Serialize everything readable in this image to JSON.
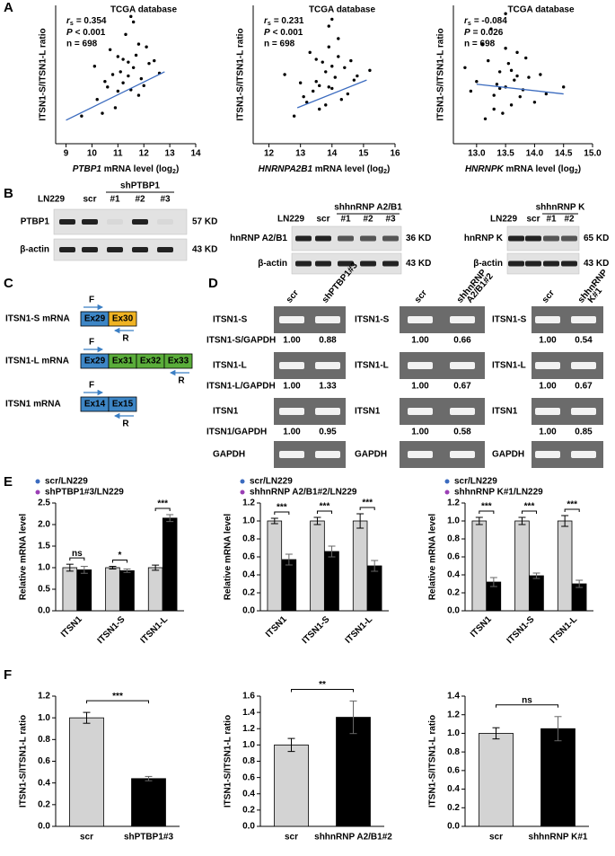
{
  "panels": [
    "A",
    "B",
    "C",
    "D",
    "E",
    "F"
  ],
  "chart_data": [
    {
      "type": "scatter",
      "title": "TCGA database",
      "stats": {
        "rs_symbol": "r",
        "rs_sub": "s",
        "rs": "= 0.354",
        "p_symbol": "P",
        "p": "< 0.001",
        "n": "n = 698"
      },
      "ylabel": "ITSN1-S/ITSN1-L ratio",
      "xlabel": {
        "gene": "PTBP1",
        "text": " mRNA level (log",
        "sub": "2",
        "end": ")"
      },
      "xlim": [
        8.6,
        14
      ],
      "xticks": [
        9,
        10,
        11,
        12,
        13,
        14
      ],
      "ylim": [
        0,
        10
      ],
      "color": "#000000",
      "x": [
        10.2,
        10.5,
        10.8,
        11.0,
        11.2,
        11.4,
        11.6,
        11.8,
        12.0,
        12.2,
        10.9,
        11.3,
        11.7,
        11.1,
        11.5,
        10.7,
        12.4,
        11.9,
        10.4,
        11.6,
        11.2,
        10.1,
        12.6,
        9.6,
        11.0,
        11.8,
        11.4,
        10.6,
        12.1,
        11.5
      ],
      "y": [
        3.2,
        4.5,
        5.0,
        3.8,
        6.1,
        4.9,
        5.5,
        7.2,
        4.2,
        5.8,
        2.6,
        7.9,
        6.4,
        5.2,
        3.9,
        6.8,
        6.0,
        4.7,
        2.2,
        8.8,
        4.4,
        5.6,
        5.1,
        2.0,
        6.3,
        3.5,
        5.9,
        4.1,
        7.0,
        9.2
      ],
      "trend": {
        "x": [
          9.0,
          12.8
        ],
        "y": [
          1.7,
          5.2
        ],
        "color": "#3b6bbf"
      }
    },
    {
      "type": "scatter",
      "title": "TCGA database",
      "stats": {
        "rs_symbol": "r",
        "rs_sub": "s",
        "rs": "= 0.231",
        "p_symbol": "P",
        "p": "< 0.001",
        "n": "n = 698"
      },
      "ylabel": "ITSN1-S/ITSN1-L ratio",
      "xlabel": {
        "gene": "HNRNPA2B1",
        "text": " mRNA level (log",
        "sub": "2",
        "end": ")"
      },
      "xlim": [
        11.5,
        16
      ],
      "xticks": [
        12,
        13,
        14,
        15,
        16
      ],
      "ylim": [
        0,
        10
      ],
      "color": "#000000",
      "x": [
        13.2,
        13.5,
        13.8,
        14.0,
        14.2,
        13.6,
        13.9,
        14.4,
        13.4,
        14.1,
        13.0,
        14.6,
        13.7,
        14.3,
        12.8,
        13.9,
        14.8,
        13.3,
        14.0,
        13.6,
        14.5,
        12.5,
        15.2,
        13.8,
        14.2,
        13.1,
        14.7,
        13.5,
        14.0,
        13.9
      ],
      "y": [
        3.0,
        4.5,
        5.2,
        4.0,
        6.3,
        2.5,
        7.0,
        5.5,
        3.8,
        4.8,
        4.4,
        6.0,
        5.9,
        3.2,
        2.0,
        8.5,
        4.9,
        6.6,
        5.6,
        4.2,
        3.6,
        5.0,
        5.3,
        2.8,
        7.6,
        3.4,
        4.6,
        6.1,
        9.0,
        4.1
      ],
      "trend": {
        "x": [
          12.9,
          15.1
        ],
        "y": [
          2.6,
          4.6
        ],
        "color": "#3b6bbf"
      }
    },
    {
      "type": "scatter",
      "title": "TCGA database",
      "stats": {
        "rs_symbol": "r",
        "rs_sub": "s",
        "rs": "= -0.084",
        "p_symbol": "P",
        "p": "= 0.026",
        "n": "n = 698"
      },
      "ylabel": "ITSN1-S/ITSN1-L ratio",
      "xlabel": {
        "gene": "HNRNPK",
        "text": " mRNA level (log",
        "sub": "2",
        "end": ")"
      },
      "xlim": [
        12.6,
        15.0
      ],
      "xticks": [
        {
          "value": 13,
          "label": "13.0"
        },
        13.5,
        {
          "value": 14,
          "label": "14.0"
        },
        14.5,
        {
          "value": 15,
          "label": "15.0"
        }
      ],
      "ylim": [
        0,
        10
      ],
      "color": "#000000",
      "x": [
        13.0,
        13.2,
        13.3,
        13.4,
        13.5,
        13.6,
        13.7,
        13.8,
        13.9,
        14.0,
        12.8,
        13.1,
        13.35,
        13.55,
        13.45,
        13.65,
        13.25,
        13.75,
        14.1,
        12.9,
        13.5,
        13.3,
        13.6,
        13.4,
        14.2,
        13.85,
        13.15,
        13.7,
        14.5,
        13.5
      ],
      "y": [
        4.5,
        6.0,
        3.5,
        5.2,
        4.1,
        2.8,
        6.6,
        3.9,
        4.8,
        3.0,
        5.5,
        7.2,
        4.3,
        5.8,
        2.2,
        4.6,
        8.3,
        3.4,
        5.0,
        3.8,
        6.9,
        2.5,
        5.3,
        4.0,
        3.6,
        6.2,
        1.8,
        4.9,
        4.1,
        9.4
      ],
      "trend": {
        "x": [
          13.0,
          14.5
        ],
        "y": [
          4.3,
          3.6
        ],
        "color": "#3b6bbf"
      }
    },
    {
      "type": "bar",
      "ylabel": "Relative mRNA level",
      "categories": [
        "ITSN1",
        "ITSN1-S",
        "ITSN1-L"
      ],
      "series": [
        {
          "name": "scr/LN229",
          "color": "#d3d3d3",
          "dot_color": "#3b6bbf",
          "values": [
            1.0,
            1.0,
            1.0
          ],
          "errors": [
            0.08,
            0.03,
            0.06
          ]
        },
        {
          "name": "shPTBP1#3/LN229",
          "color": "#000000",
          "dot_color": "#9b3fb5",
          "values": [
            0.95,
            0.93,
            2.15
          ],
          "errors": [
            0.08,
            0.04,
            0.08
          ]
        }
      ],
      "significance": [
        "ns",
        "*",
        "***"
      ],
      "ylim": [
        0,
        2.5
      ],
      "yticks": [
        {
          "value": 0,
          "label": "0.0"
        },
        0.5,
        {
          "value": 1,
          "label": "1.0"
        },
        1.5,
        {
          "value": 2,
          "label": "2.0"
        },
        2.5
      ]
    },
    {
      "type": "bar",
      "ylabel": "Relative mRNA level",
      "categories": [
        "ITSN1",
        "ITSN1-S",
        "ITSN1-L"
      ],
      "series": [
        {
          "name": "scr/LN229",
          "color": "#d3d3d3",
          "dot_color": "#3b6bbf",
          "values": [
            1.0,
            1.0,
            1.0
          ],
          "errors": [
            0.03,
            0.04,
            0.08
          ]
        },
        {
          "name": "shhnRNP A2/B1#2/LN229",
          "color": "#000000",
          "dot_color": "#9b3fb5",
          "values": [
            0.57,
            0.66,
            0.5
          ],
          "errors": [
            0.06,
            0.06,
            0.06
          ]
        }
      ],
      "significance": [
        "***",
        "***",
        "***"
      ],
      "ylim": [
        0,
        1.2
      ],
      "yticks": [
        {
          "value": 0,
          "label": "0.0"
        },
        0.2,
        0.4,
        0.6,
        0.8,
        {
          "value": 1,
          "label": "1.0"
        },
        1.2
      ]
    },
    {
      "type": "bar",
      "ylabel": "Relative mRNA level",
      "categories": [
        "ITSN1",
        "ITSN1-S",
        "ITSN1-L"
      ],
      "series": [
        {
          "name": "scr/LN229",
          "color": "#d3d3d3",
          "dot_color": "#3b6bbf",
          "values": [
            1.0,
            1.0,
            1.0
          ],
          "errors": [
            0.04,
            0.04,
            0.06
          ]
        },
        {
          "name": "shhnRNP K#1/LN229",
          "color": "#000000",
          "dot_color": "#9b3fb5",
          "values": [
            0.32,
            0.39,
            0.3
          ],
          "errors": [
            0.05,
            0.03,
            0.04
          ]
        }
      ],
      "significance": [
        "***",
        "***",
        "***"
      ],
      "ylim": [
        0,
        1.2
      ],
      "yticks": [
        {
          "value": 0,
          "label": "0.0"
        },
        0.2,
        0.4,
        0.6,
        0.8,
        {
          "value": 1,
          "label": "1.0"
        },
        1.2
      ]
    },
    {
      "type": "bar",
      "ylabel": "ITSN1-S/ITSN1-L ratio",
      "categories": [
        "scr",
        "shPTBP1#3"
      ],
      "values": [
        1.0,
        0.44
      ],
      "errors": [
        0.05,
        0.02
      ],
      "colors": [
        "#d3d3d3",
        "#000000"
      ],
      "significance": "***",
      "ylim": [
        0,
        1.2
      ],
      "yticks": [
        {
          "value": 0,
          "label": "0.0"
        },
        0.2,
        0.4,
        0.6,
        0.8,
        {
          "value": 1,
          "label": "1.0"
        },
        1.2
      ]
    },
    {
      "type": "bar",
      "ylabel": "ITSN1-S/ITSN1-L ratio",
      "categories": [
        "scr",
        "shhnRNP A2/B1#2"
      ],
      "values": [
        1.0,
        1.34
      ],
      "errors": [
        0.08,
        0.2
      ],
      "colors": [
        "#d3d3d3",
        "#000000"
      ],
      "significance": "**",
      "ylim": [
        0,
        1.6
      ],
      "yticks": [
        {
          "value": 0,
          "label": "0.0"
        },
        0.2,
        0.4,
        0.6,
        0.8,
        {
          "value": 1,
          "label": "1.0"
        },
        1.2,
        1.4,
        1.6
      ]
    },
    {
      "type": "bar",
      "ylabel": "ITSN1-S/ITSN1-L ratio",
      "categories": [
        "scr",
        "shhnRNP K#1"
      ],
      "values": [
        1.0,
        1.05
      ],
      "errors": [
        0.06,
        0.13
      ],
      "colors": [
        "#d3d3d3",
        "#000000"
      ],
      "significance": "ns",
      "ylim": [
        0,
        1.4
      ],
      "yticks": [
        {
          "value": 0,
          "label": "0.0"
        },
        0.2,
        0.4,
        0.6,
        0.8,
        {
          "value": 1,
          "label": "1.0"
        },
        1.2,
        1.4
      ]
    }
  ],
  "blots": [
    {
      "cell": "LN229",
      "control": "scr",
      "group": "shPTBP1",
      "lanes": [
        "#1",
        "#2",
        "#3"
      ],
      "rows": [
        {
          "label": "PTBP1",
          "size": "57 KD"
        },
        {
          "label": "β-actin",
          "size": "43 KD"
        }
      ]
    },
    {
      "cell": "LN229",
      "control": "scr",
      "group": "shhnRNP A2/B1",
      "lanes": [
        "#1",
        "#2",
        "#3"
      ],
      "rows": [
        {
          "label": "hnRNP A2/B1",
          "size": "36 KD"
        },
        {
          "label": "β-actin",
          "size": "43 KD"
        }
      ]
    },
    {
      "cell": "LN229",
      "control": "scr",
      "group": "shhnRNP K",
      "lanes": [
        "#1",
        "#2"
      ],
      "rows": [
        {
          "label": "hnRNP K",
          "size": "65 KD"
        },
        {
          "label": "β-actin",
          "size": "43 KD"
        }
      ]
    }
  ],
  "diagram": {
    "transcripts": [
      {
        "name": "ITSN1-S mRNA",
        "exons": [
          "Ex29",
          "Ex30"
        ],
        "forward": "F",
        "reverse": "R"
      },
      {
        "name": "ITSN1-L mRNA",
        "exons": [
          "Ex29",
          "Ex31",
          "Ex32",
          "Ex33"
        ],
        "forward": "F",
        "reverse": "R"
      },
      {
        "name": "ITSN1 mRNA",
        "exons": [
          "Ex14",
          "Ex15"
        ],
        "forward": "F",
        "reverse": "R"
      }
    ]
  },
  "gels": [
    {
      "columns": [
        [
          "scr"
        ],
        [
          "shPTBP1#3"
        ]
      ],
      "rows": [
        {
          "label": "ITSN1-S",
          "ratio_label": "ITSN1-S/GAPDH",
          "ratios": [
            "1.00",
            "0.88"
          ]
        },
        {
          "label": "ITSN1-L",
          "ratio_label": "ITSN1-L/GAPDH",
          "ratios": [
            "1.00",
            "1.33"
          ]
        },
        {
          "label": "ITSN1",
          "ratio_label": "ITSN1/GAPDH",
          "ratios": [
            "1.00",
            "0.95"
          ]
        },
        {
          "label": "GAPDH"
        }
      ]
    },
    {
      "columns": [
        [
          "scr"
        ],
        [
          "shhnRNP",
          "A2/B1#2"
        ]
      ],
      "rows": [
        {
          "label": "ITSN1-S",
          "ratios": [
            "1.00",
            "0.66"
          ]
        },
        {
          "label": "ITSN1-L",
          "ratios": [
            "1.00",
            "0.67"
          ]
        },
        {
          "label": "ITSN1",
          "ratios": [
            "1.00",
            "0.58"
          ]
        },
        {
          "label": "GAPDH"
        }
      ]
    },
    {
      "columns": [
        [
          "scr"
        ],
        [
          "shhnRNP",
          "K#1"
        ]
      ],
      "rows": [
        {
          "label": "ITSN1-S",
          "ratios": [
            "1.00",
            "0.54"
          ]
        },
        {
          "label": "ITSN1-L",
          "ratios": [
            "1.00",
            "0.67"
          ]
        },
        {
          "label": "ITSN1",
          "ratios": [
            "1.00",
            "0.85"
          ]
        },
        {
          "label": "GAPDH"
        }
      ]
    }
  ]
}
